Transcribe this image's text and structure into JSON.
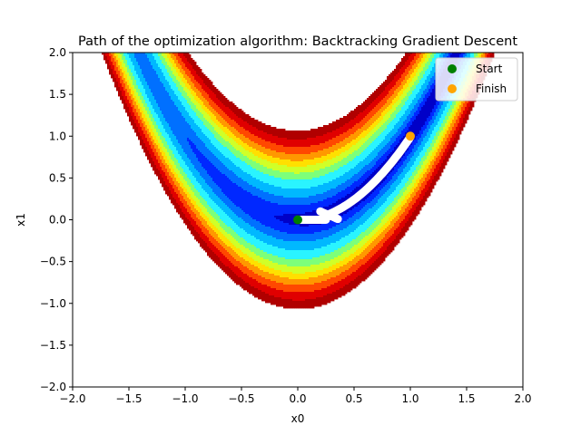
{
  "chart_data": {
    "type": "contour",
    "title": "Path of the optimization algorithm: Backtracking Gradient Descent",
    "xlabel": "x0",
    "ylabel": "x1",
    "xlim": [
      -2.0,
      2.0
    ],
    "ylim": [
      -2.0,
      2.0
    ],
    "xticks": [
      "−2.0",
      "−1.5",
      "−1.0",
      "−0.5",
      "0.0",
      "0.5",
      "1.0",
      "1.5",
      "2.0"
    ],
    "yticks": [
      "−2.0",
      "−1.5",
      "−1.0",
      "−0.5",
      "0.0",
      "0.5",
      "1.0",
      "1.5",
      "2.0"
    ],
    "grid": false,
    "legend_position": "top-right",
    "function": "rosenbrock",
    "contour_levels": [
      0,
      0.9,
      1.6,
      2.2,
      2.75,
      3.2,
      3.5,
      3.75,
      3.95,
      4.15,
      4.35,
      4.55
    ],
    "contour_colors": [
      "#0000c8",
      "#0028ff",
      "#0070ff",
      "#00b8ff",
      "#2af4ff",
      "#7dff7a",
      "#d0ff28",
      "#ffe000",
      "#ff9800",
      "#ff4800",
      "#e00000",
      "#b00000"
    ],
    "path_color": "#ffffff",
    "start": {
      "x": 0.0,
      "y": 0.0,
      "color": "#008000"
    },
    "finish": {
      "x": 1.0,
      "y": 1.0,
      "color": "#ffa500"
    },
    "legend": [
      {
        "label": "Start",
        "color": "#008000"
      },
      {
        "label": "Finish",
        "color": "#ffa500"
      }
    ]
  }
}
